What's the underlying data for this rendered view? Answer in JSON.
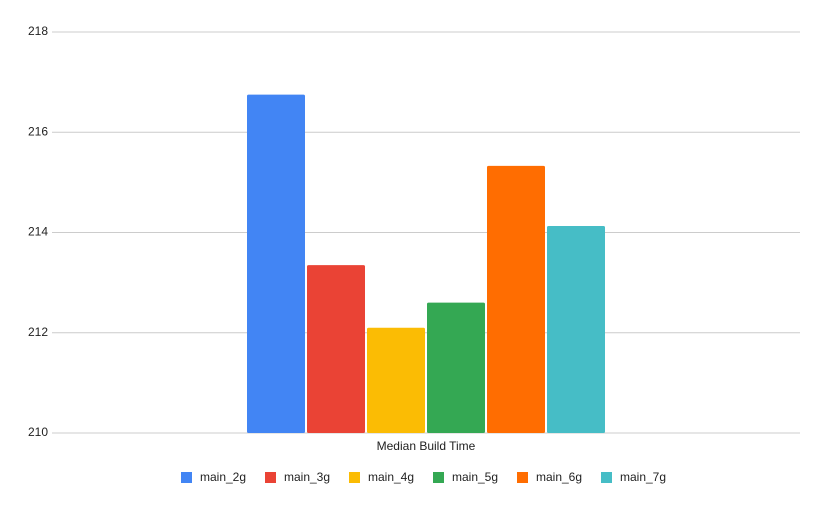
{
  "chart_data": {
    "type": "bar",
    "categories": [
      "Median Build Time"
    ],
    "series": [
      {
        "name": "main_2g",
        "color": "#4285f4",
        "values": [
          216.75
        ]
      },
      {
        "name": "main_3g",
        "color": "#ea4335",
        "values": [
          213.35
        ]
      },
      {
        "name": "main_4g",
        "color": "#fbbc04",
        "values": [
          212.1
        ]
      },
      {
        "name": "main_5g",
        "color": "#34a853",
        "values": [
          212.6
        ]
      },
      {
        "name": "main_6g",
        "color": "#ff6d01",
        "values": [
          215.33
        ]
      },
      {
        "name": "main_7g",
        "color": "#46bdc6",
        "values": [
          214.13
        ]
      }
    ],
    "ylim": [
      210,
      218
    ],
    "yticks": [
      210,
      212,
      214,
      216,
      218
    ],
    "grid": true,
    "legend": "bottom"
  }
}
